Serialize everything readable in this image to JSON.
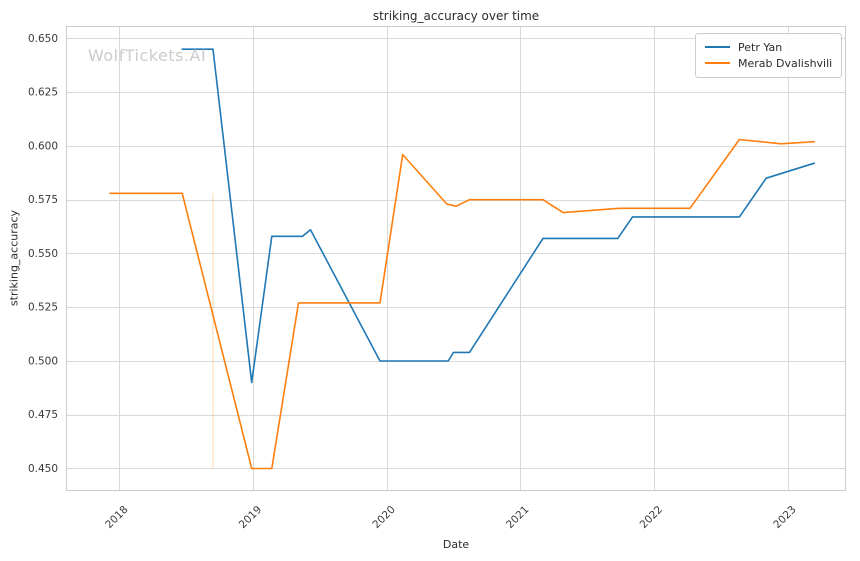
{
  "figure": {
    "watermark": "WolfTickets.AI"
  },
  "chart_data": {
    "type": "line",
    "title": "striking_accuracy over time",
    "xlabel": "Date",
    "ylabel": "striking_accuracy",
    "grid": true,
    "legend_position": "upper right",
    "xlim": [
      2017.6,
      2023.43
    ],
    "ylim": [
      0.44,
      0.6558
    ],
    "xticks": [
      "2018",
      "2019",
      "2020",
      "2021",
      "2022",
      "2023"
    ],
    "yticks": [
      "0.450",
      "0.475",
      "0.500",
      "0.525",
      "0.550",
      "0.575",
      "0.600",
      "0.625",
      "0.650"
    ],
    "colors": {
      "grid": "#d9d9d9",
      "spine": "#cccccc",
      "tick_text": "#3a3a3a"
    },
    "series": [
      {
        "name": "Petr Yan",
        "color": "#1f77b4",
        "points": [
          [
            2018.47,
            0.645
          ],
          [
            2018.7,
            0.645
          ],
          [
            2018.99,
            0.49
          ],
          [
            2019.14,
            0.558
          ],
          [
            2019.37,
            0.558
          ],
          [
            2019.43,
            0.561
          ],
          [
            2019.95,
            0.5
          ],
          [
            2020.46,
            0.5
          ],
          [
            2020.5,
            0.504
          ],
          [
            2020.62,
            0.504
          ],
          [
            2021.17,
            0.557
          ],
          [
            2021.73,
            0.557
          ],
          [
            2021.84,
            0.567
          ],
          [
            2022.64,
            0.567
          ],
          [
            2022.84,
            0.585
          ],
          [
            2023.2,
            0.592
          ]
        ]
      },
      {
        "name": "Merab Dvalishvili",
        "color": "#ff7f0e",
        "points": [
          [
            2017.93,
            0.578
          ],
          [
            2018.47,
            0.578
          ],
          [
            2018.99,
            0.45
          ],
          [
            2019.14,
            0.45
          ],
          [
            2019.34,
            0.527
          ],
          [
            2019.95,
            0.527
          ],
          [
            2020.12,
            0.596
          ],
          [
            2020.45,
            0.573
          ],
          [
            2020.52,
            0.572
          ],
          [
            2020.62,
            0.575
          ],
          [
            2021.17,
            0.575
          ],
          [
            2021.32,
            0.569
          ],
          [
            2021.74,
            0.571
          ],
          [
            2022.27,
            0.571
          ],
          [
            2022.64,
            0.603
          ],
          [
            2022.95,
            0.601
          ],
          [
            2023.2,
            0.602
          ]
        ]
      }
    ],
    "annotations": [
      {
        "type": "vline",
        "x": 2018.7,
        "y1": 0.45,
        "y2": 0.578,
        "color": "#ff7f0e",
        "opacity": 0.25
      }
    ]
  }
}
